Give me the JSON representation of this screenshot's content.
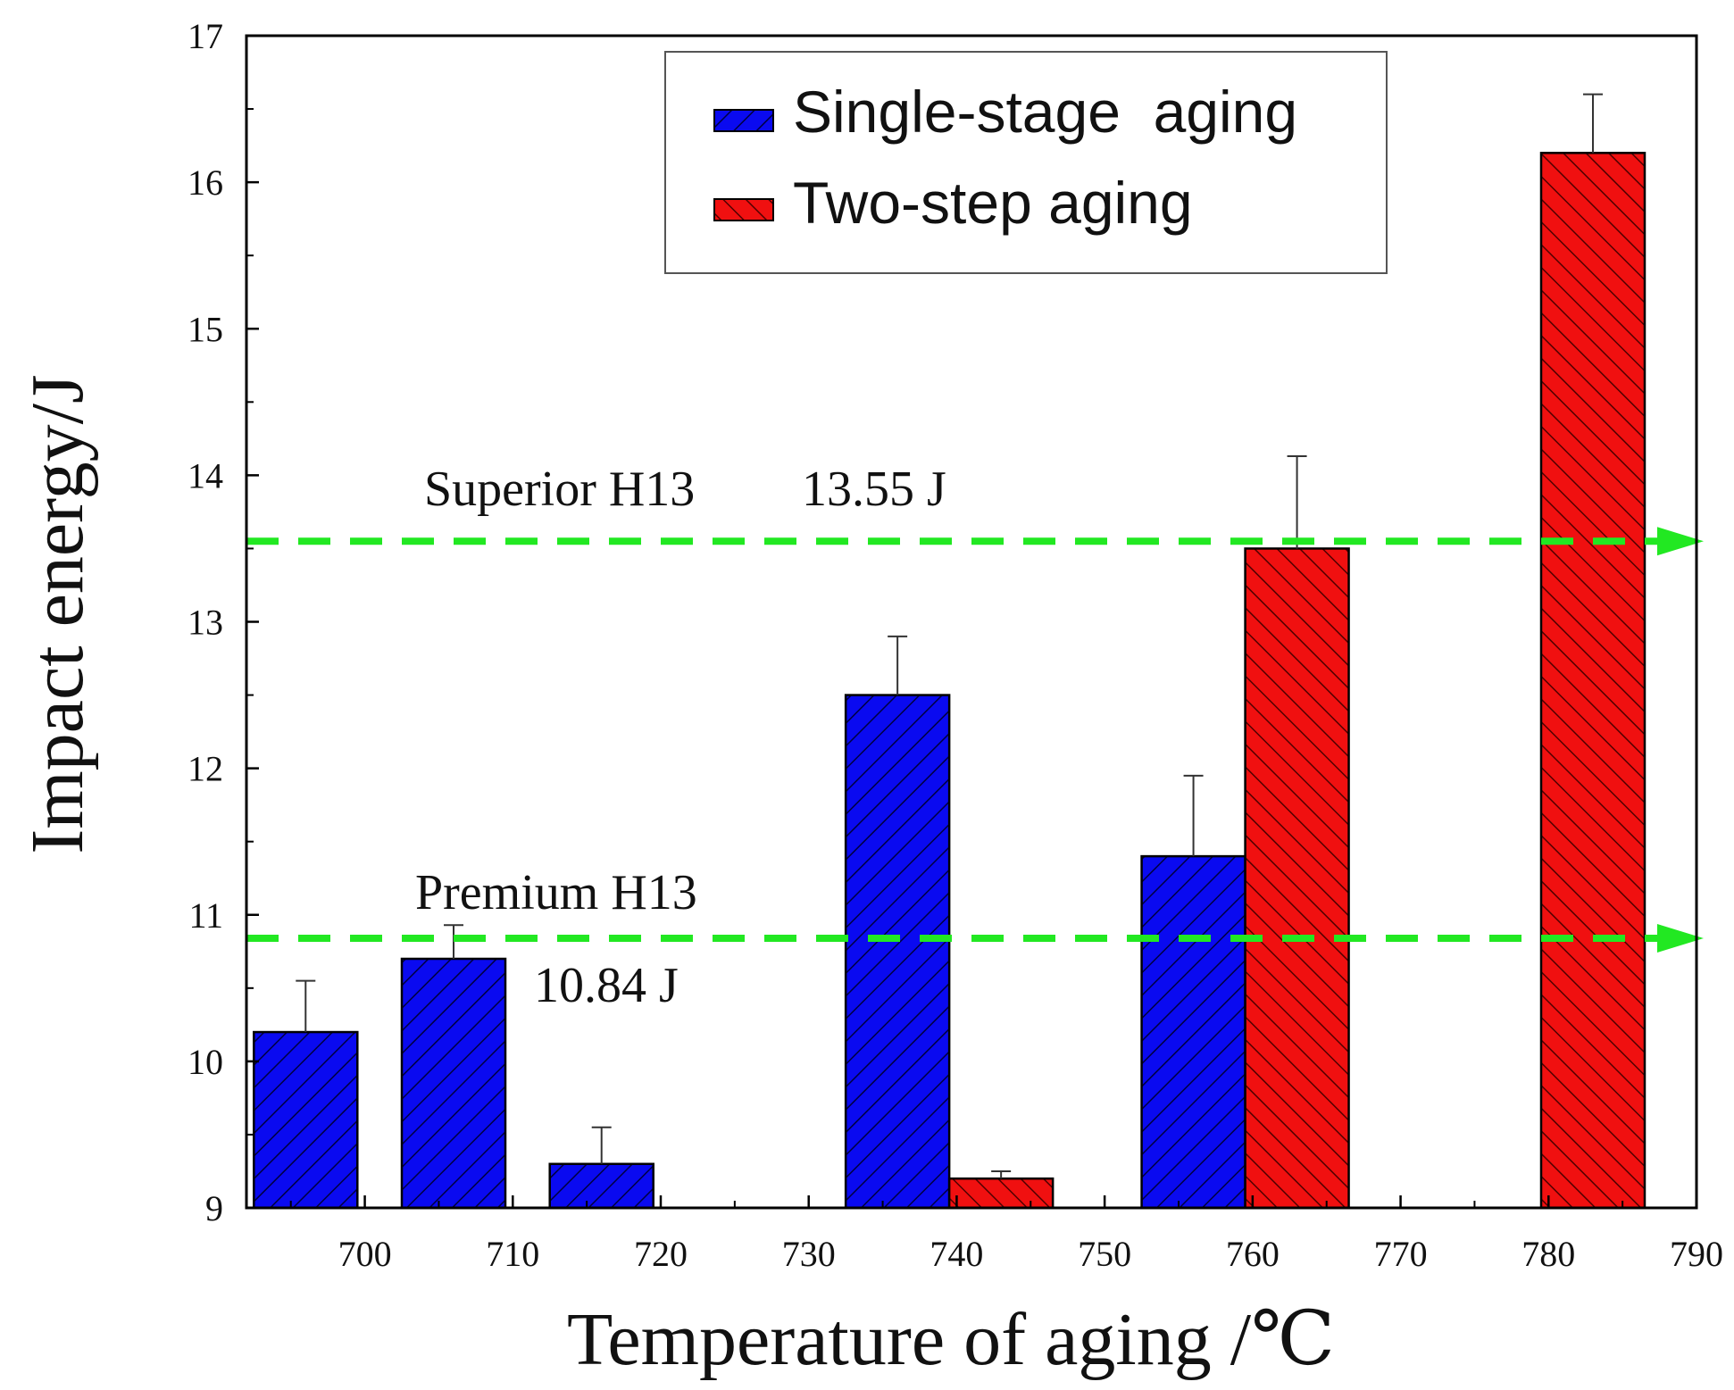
{
  "chart_data": {
    "type": "bar",
    "title": "",
    "xlabel": "Temperature of aging /℃",
    "ylabel": "Impact energy/J",
    "xlim": [
      692,
      790
    ],
    "ylim": [
      9,
      17
    ],
    "xticks": [
      700,
      710,
      720,
      730,
      740,
      750,
      760,
      770,
      780,
      790
    ],
    "yticks": [
      9,
      10,
      11,
      12,
      13,
      14,
      15,
      16,
      17
    ],
    "bar_width": 7,
    "legend_position": "top-right",
    "series": [
      {
        "name": "Single-stage  aging",
        "color": "#0a0af0",
        "points": [
          {
            "x": 696,
            "y": 10.2,
            "err": 0.35
          },
          {
            "x": 706,
            "y": 10.7,
            "err": 0.23
          },
          {
            "x": 716,
            "y": 9.3,
            "err": 0.25
          },
          {
            "x": 736,
            "y": 12.5,
            "err": 0.4
          },
          {
            "x": 756,
            "y": 11.4,
            "err": 0.55
          }
        ]
      },
      {
        "name": "Two-step aging",
        "color": "#f01010",
        "points": [
          {
            "x": 743,
            "y": 9.2,
            "err": 0.05
          },
          {
            "x": 763,
            "y": 13.5,
            "err": 0.63
          },
          {
            "x": 783,
            "y": 16.2,
            "err": 0.4
          }
        ]
      }
    ],
    "reference_lines": [
      {
        "label_1": "Superior H13",
        "label_2": "13.55 J",
        "y": 13.55,
        "color": "#22e822"
      },
      {
        "label_1": "Premium H13",
        "label_2": "10.84 J",
        "y": 10.84,
        "color": "#22e822"
      }
    ]
  }
}
